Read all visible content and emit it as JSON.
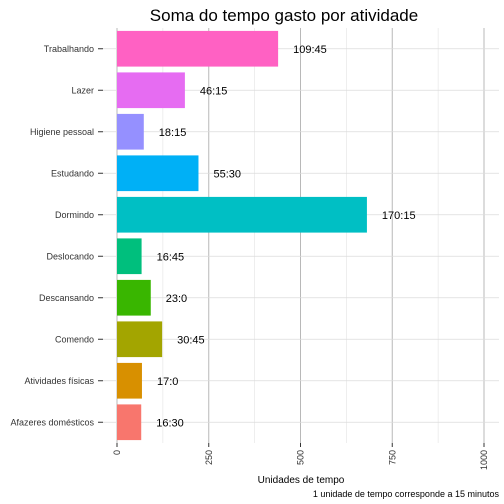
{
  "chart_data": {
    "type": "bar",
    "orientation": "horizontal",
    "title": "Soma do tempo gasto por atividade",
    "xlabel": "Unidades de tempo",
    "ylabel": "",
    "caption": "1 unidade de tempo corresponde a 15 minutos",
    "xlim": [
      0,
      1000
    ],
    "xticks": [
      0,
      250,
      500,
      750,
      1000
    ],
    "grid": true,
    "legend": "none",
    "categories": [
      "Trabalhando",
      "Lazer",
      "Higiene pessoal",
      "Estudando",
      "Dormindo",
      "Deslocando",
      "Descansando",
      "Comendo",
      "Atividades físicas",
      "Afazeres domésticos"
    ],
    "values": [
      439,
      185,
      73,
      222,
      681,
      67,
      92,
      123,
      68,
      66
    ],
    "data_labels": [
      "109:45",
      "46:15",
      "18:15",
      "55:30",
      "170:15",
      "16:45",
      "23:0",
      "30:45",
      "17:0",
      "16:30"
    ],
    "colors": [
      "#FF61C3",
      "#E66CF2",
      "#9590FF",
      "#00B0F6",
      "#00BFC4",
      "#00BF7D",
      "#39B600",
      "#A3A500",
      "#D89000",
      "#F8766D"
    ]
  }
}
